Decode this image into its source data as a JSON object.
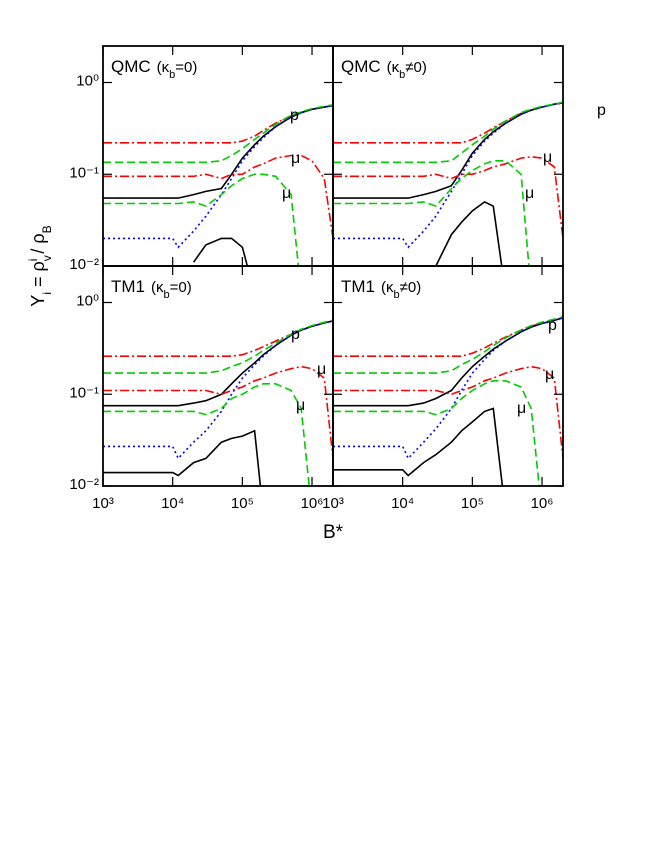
{
  "xlabel": "B*",
  "ylabel": [
    "Y",
    "i",
    " = ρ",
    "v",
    "i",
    " / ρ",
    "B"
  ],
  "chart_data": [
    {
      "type": "line",
      "title": "QMC",
      "condition": [
        "(κ",
        "b",
        "=0)"
      ],
      "annotations": [
        "p",
        "μ",
        "μ"
      ],
      "xscale": "log",
      "yscale": "log",
      "xlim": [
        1000,
        2000000
      ],
      "ylim": [
        0.01,
        2.5
      ],
      "xticks": [
        1000,
        10000,
        100000,
        1000000
      ],
      "yticks": [
        {
          "value": 0.01,
          "label": "10⁻²"
        },
        {
          "value": 0.1,
          "label": "10⁻¹"
        },
        {
          "value": 1,
          "label": "10⁰"
        }
      ],
      "x": [
        1000,
        2000,
        5000,
        10000,
        12000,
        20000,
        30000,
        50000,
        70000,
        100000,
        150000,
        200000,
        300000,
        500000,
        700000,
        1000000,
        1500000,
        2000000
      ],
      "series": [
        {
          "color": "#ff0000",
          "style": "dashdot",
          "values": [
            0.22,
            0.22,
            0.22,
            0.22,
            0.22,
            0.22,
            0.22,
            0.22,
            0.22,
            0.23,
            0.26,
            0.3,
            0.36,
            0.43,
            0.47,
            0.51,
            0.54,
            0.56
          ]
        },
        {
          "color": "#000000",
          "style": "solid",
          "values": [
            0.055,
            0.055,
            0.055,
            0.055,
            0.055,
            0.06,
            0.065,
            0.07,
            0.1,
            0.15,
            0.21,
            0.26,
            0.33,
            0.42,
            0.47,
            0.51,
            0.54,
            0.56
          ]
        },
        {
          "color": "#0000ff",
          "style": "dotted",
          "values": [
            0.02,
            0.02,
            0.02,
            0.02,
            0.016,
            0.024,
            0.035,
            0.06,
            0.09,
            0.14,
            0.2,
            0.25,
            0.33,
            0.42,
            0.47,
            0.51,
            0.54,
            0.56
          ]
        },
        {
          "color": "#00cc00",
          "style": "dashed",
          "values": [
            0.135,
            0.135,
            0.135,
            0.135,
            0.135,
            0.135,
            0.135,
            0.14,
            0.16,
            0.19,
            0.24,
            0.28,
            0.35,
            0.44,
            0.48,
            0.52,
            0.55,
            0.57
          ]
        },
        {
          "color": "#ff0000",
          "style": "dashdot",
          "values": [
            0.095,
            0.095,
            0.095,
            0.095,
            0.095,
            0.095,
            0.1,
            0.09,
            0.1,
            0.1,
            0.12,
            0.13,
            0.15,
            0.16,
            0.16,
            0.14,
            0.09,
            0.02
          ]
        },
        {
          "color": "#00cc00",
          "style": "dashed",
          "values": [
            0.048,
            0.048,
            0.048,
            0.048,
            0.048,
            0.05,
            0.045,
            0.06,
            0.075,
            0.09,
            0.1,
            0.1,
            0.095,
            0.06,
            0.005,
            null,
            null,
            null
          ]
        },
        {
          "color": "#000000",
          "style": "solid",
          "values": [
            null,
            null,
            null,
            null,
            null,
            0.011,
            0.017,
            0.02,
            0.02,
            0.016,
            0.005,
            null,
            null,
            null,
            null,
            null,
            null,
            null
          ]
        }
      ]
    },
    {
      "type": "line",
      "title": "QMC",
      "condition": [
        "(κ",
        "b",
        "≠0)"
      ],
      "annotations": [
        "p",
        "μ",
        "μ"
      ],
      "xscale": "log",
      "yscale": "log",
      "xlim": [
        1000,
        2000000
      ],
      "ylim": [
        0.01,
        2.5
      ],
      "xticks": [
        1000,
        10000,
        100000,
        1000000
      ],
      "yticks": [
        0.01,
        0.1,
        1
      ],
      "x": [
        1000,
        2000,
        5000,
        10000,
        12000,
        20000,
        30000,
        50000,
        70000,
        100000,
        150000,
        200000,
        300000,
        500000,
        700000,
        1000000,
        1500000,
        2000000
      ],
      "series": [
        {
          "color": "#ff0000",
          "style": "dashdot",
          "values": [
            0.22,
            0.22,
            0.22,
            0.22,
            0.22,
            0.22,
            0.22,
            0.22,
            0.22,
            0.24,
            0.28,
            0.32,
            0.38,
            0.46,
            0.5,
            0.54,
            0.58,
            0.6
          ]
        },
        {
          "color": "#000000",
          "style": "solid",
          "values": [
            0.055,
            0.055,
            0.055,
            0.055,
            0.055,
            0.06,
            0.065,
            0.075,
            0.11,
            0.17,
            0.24,
            0.29,
            0.36,
            0.45,
            0.5,
            0.54,
            0.58,
            0.6
          ]
        },
        {
          "color": "#0000ff",
          "style": "dotted",
          "values": [
            0.02,
            0.02,
            0.02,
            0.02,
            0.016,
            0.024,
            0.035,
            0.065,
            0.1,
            0.16,
            0.23,
            0.28,
            0.36,
            0.45,
            0.5,
            0.54,
            0.58,
            0.6
          ]
        },
        {
          "color": "#00cc00",
          "style": "dashed",
          "values": [
            0.135,
            0.135,
            0.135,
            0.135,
            0.135,
            0.135,
            0.135,
            0.14,
            0.17,
            0.21,
            0.26,
            0.31,
            0.38,
            0.47,
            0.51,
            0.55,
            0.58,
            0.61
          ]
        },
        {
          "color": "#ff0000",
          "style": "dashdot",
          "values": [
            0.095,
            0.095,
            0.095,
            0.095,
            0.095,
            0.095,
            0.1,
            0.09,
            0.1,
            0.1,
            0.11,
            0.12,
            0.13,
            0.15,
            0.155,
            0.15,
            0.12,
            0.02
          ]
        },
        {
          "color": "#00cc00",
          "style": "dashed",
          "values": [
            0.048,
            0.048,
            0.048,
            0.048,
            0.048,
            0.05,
            0.045,
            0.07,
            0.09,
            0.11,
            0.13,
            0.14,
            0.14,
            0.1,
            0.005,
            null,
            null,
            null
          ]
        },
        {
          "color": "#000000",
          "style": "solid",
          "values": [
            null,
            null,
            null,
            null,
            null,
            null,
            0.01,
            0.022,
            0.03,
            0.04,
            0.05,
            0.045,
            0.005,
            null,
            null,
            null,
            null,
            null
          ]
        }
      ]
    },
    {
      "type": "line",
      "title": "TM1",
      "condition": [
        "(κ",
        "b",
        "=0)"
      ],
      "annotations": [
        "p",
        "μ",
        "μ"
      ],
      "xscale": "log",
      "yscale": "log",
      "xlim": [
        1000,
        2000000
      ],
      "ylim": [
        0.01,
        2.5
      ],
      "xticks": [
        {
          "value": 1000,
          "label": "10³"
        },
        {
          "value": 10000,
          "label": "10⁴"
        },
        {
          "value": 100000,
          "label": "10⁵"
        },
        {
          "value": 1000000,
          "label": "10⁶"
        }
      ],
      "yticks": [
        {
          "value": 0.01,
          "label": "10⁻²"
        },
        {
          "value": 0.1,
          "label": "10⁻¹"
        },
        {
          "value": 1,
          "label": "10⁰"
        }
      ],
      "x": [
        1000,
        2000,
        5000,
        10000,
        12000,
        20000,
        30000,
        50000,
        70000,
        100000,
        150000,
        200000,
        300000,
        500000,
        700000,
        1000000,
        1500000,
        2000000
      ],
      "series": [
        {
          "color": "#ff0000",
          "style": "dashdot",
          "values": [
            0.26,
            0.26,
            0.26,
            0.26,
            0.26,
            0.26,
            0.26,
            0.26,
            0.26,
            0.27,
            0.3,
            0.33,
            0.38,
            0.45,
            0.5,
            0.55,
            0.6,
            0.63
          ]
        },
        {
          "color": "#000000",
          "style": "solid",
          "values": [
            0.075,
            0.075,
            0.075,
            0.075,
            0.075,
            0.08,
            0.085,
            0.1,
            0.13,
            0.17,
            0.22,
            0.27,
            0.34,
            0.44,
            0.5,
            0.55,
            0.6,
            0.63
          ]
        },
        {
          "color": "#0000ff",
          "style": "dotted",
          "values": [
            0.027,
            0.027,
            0.027,
            0.027,
            0.02,
            0.03,
            0.04,
            0.065,
            0.1,
            0.15,
            0.21,
            0.26,
            0.34,
            0.44,
            0.5,
            0.55,
            0.6,
            0.63
          ]
        },
        {
          "color": "#00cc00",
          "style": "dashed",
          "values": [
            0.17,
            0.17,
            0.17,
            0.17,
            0.17,
            0.17,
            0.17,
            0.18,
            0.2,
            0.22,
            0.26,
            0.3,
            0.36,
            0.45,
            0.51,
            0.56,
            0.61,
            0.64
          ]
        },
        {
          "color": "#ff0000",
          "style": "dashdot",
          "values": [
            0.11,
            0.11,
            0.11,
            0.11,
            0.11,
            0.11,
            0.11,
            0.1,
            0.11,
            0.12,
            0.14,
            0.15,
            0.17,
            0.19,
            0.2,
            0.19,
            0.15,
            0.02
          ]
        },
        {
          "color": "#00cc00",
          "style": "dashed",
          "values": [
            0.065,
            0.065,
            0.065,
            0.065,
            0.065,
            0.065,
            0.06,
            0.07,
            0.09,
            0.1,
            0.12,
            0.13,
            0.13,
            0.11,
            0.07,
            0.005,
            null,
            null
          ]
        },
        {
          "color": "#000000",
          "style": "solid",
          "values": [
            0.014,
            0.014,
            0.014,
            0.014,
            0.013,
            0.018,
            0.02,
            0.03,
            0.033,
            0.035,
            0.04,
            0.005,
            null,
            null,
            null,
            null,
            null,
            null
          ]
        }
      ]
    },
    {
      "type": "line",
      "title": "TM1",
      "condition": [
        "(κ",
        "b",
        "≠0)"
      ],
      "annotations": [
        "p",
        "μ",
        "μ"
      ],
      "xscale": "log",
      "yscale": "log",
      "xlim": [
        1000,
        2000000
      ],
      "ylim": [
        0.01,
        2.5
      ],
      "xticks": [
        {
          "value": 1000,
          "label": "10³"
        },
        {
          "value": 10000,
          "label": "10⁴"
        },
        {
          "value": 100000,
          "label": "10⁵"
        },
        {
          "value": 1000000,
          "label": "10⁶"
        }
      ],
      "yticks": [
        0.01,
        0.1,
        1
      ],
      "x": [
        1000,
        2000,
        5000,
        10000,
        12000,
        20000,
        30000,
        50000,
        70000,
        100000,
        150000,
        200000,
        300000,
        500000,
        700000,
        1000000,
        1500000,
        2000000
      ],
      "series": [
        {
          "color": "#ff0000",
          "style": "dashdot",
          "values": [
            0.26,
            0.26,
            0.26,
            0.26,
            0.26,
            0.26,
            0.26,
            0.26,
            0.26,
            0.28,
            0.32,
            0.36,
            0.42,
            0.5,
            0.55,
            0.6,
            0.65,
            0.68
          ]
        },
        {
          "color": "#000000",
          "style": "solid",
          "values": [
            0.075,
            0.075,
            0.075,
            0.075,
            0.075,
            0.08,
            0.09,
            0.11,
            0.15,
            0.2,
            0.26,
            0.31,
            0.38,
            0.48,
            0.54,
            0.59,
            0.64,
            0.68
          ]
        },
        {
          "color": "#0000ff",
          "style": "dotted",
          "values": [
            0.027,
            0.027,
            0.027,
            0.027,
            0.02,
            0.03,
            0.042,
            0.07,
            0.11,
            0.17,
            0.24,
            0.3,
            0.38,
            0.48,
            0.54,
            0.59,
            0.64,
            0.68
          ]
        },
        {
          "color": "#00cc00",
          "style": "dashed",
          "values": [
            0.17,
            0.17,
            0.17,
            0.17,
            0.17,
            0.17,
            0.17,
            0.18,
            0.21,
            0.24,
            0.29,
            0.34,
            0.41,
            0.5,
            0.56,
            0.61,
            0.66,
            0.7
          ]
        },
        {
          "color": "#ff0000",
          "style": "dashdot",
          "values": [
            0.11,
            0.11,
            0.11,
            0.11,
            0.11,
            0.11,
            0.11,
            0.1,
            0.11,
            0.12,
            0.14,
            0.15,
            0.17,
            0.19,
            0.2,
            0.19,
            0.15,
            0.02
          ]
        },
        {
          "color": "#00cc00",
          "style": "dashed",
          "values": [
            0.065,
            0.065,
            0.065,
            0.065,
            0.065,
            0.065,
            0.06,
            0.07,
            0.09,
            0.11,
            0.13,
            0.14,
            0.14,
            0.12,
            0.07,
            0.005,
            null,
            null
          ]
        },
        {
          "color": "#000000",
          "style": "solid",
          "values": [
            0.015,
            0.015,
            0.015,
            0.015,
            0.013,
            0.018,
            0.022,
            0.03,
            0.04,
            0.05,
            0.065,
            0.07,
            0.005,
            null,
            null,
            null,
            null,
            null
          ]
        }
      ]
    }
  ]
}
